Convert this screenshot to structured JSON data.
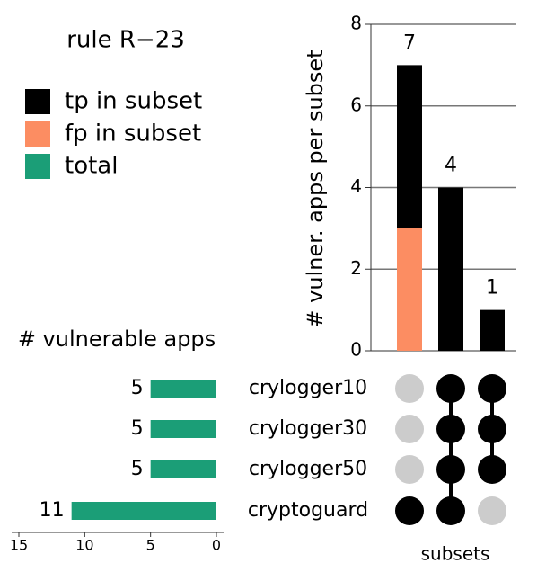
{
  "chart_data": [
    {
      "type": "stacked-bar",
      "title": "rule R−23",
      "ylabel": "# vulner. apps per subset",
      "series": [
        {
          "name": "fp in subset",
          "color": "#fc8d62",
          "values": [
            3,
            0,
            0
          ]
        },
        {
          "name": "tp in subset",
          "color": "#000000",
          "values": [
            4,
            4,
            1
          ]
        }
      ],
      "totals": [
        7,
        4,
        1
      ],
      "ylim": [
        0,
        8
      ],
      "yticks": [
        0,
        2,
        4,
        6,
        8
      ],
      "grid": true
    },
    {
      "type": "hbar",
      "title": "# vulnerable apps",
      "categories": [
        "crylogger10",
        "crylogger30",
        "crylogger50",
        "cryptoguard"
      ],
      "series": [
        {
          "name": "total",
          "color": "#1b9e77",
          "values": [
            5,
            5,
            5,
            11
          ]
        }
      ],
      "xlim": [
        15,
        0
      ],
      "xticks": [
        15,
        10,
        5,
        0
      ]
    },
    {
      "type": "matrix",
      "xlabel": "subsets",
      "color": "#000000",
      "empty_color": "#cccccc",
      "membership": [
        [
          0,
          1,
          1
        ],
        [
          0,
          1,
          1
        ],
        [
          0,
          1,
          1
        ],
        [
          1,
          1,
          0
        ]
      ]
    }
  ]
}
